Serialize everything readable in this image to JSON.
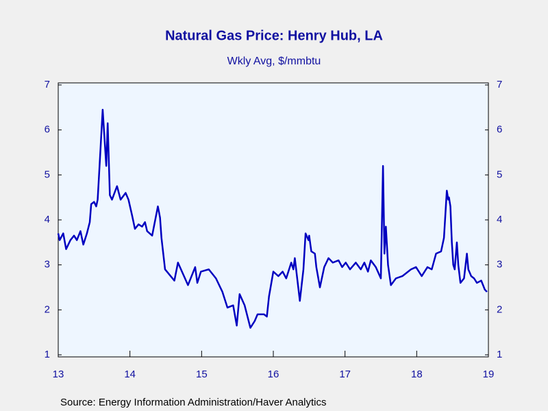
{
  "chart_data": {
    "type": "line",
    "title": "Natural Gas Price: Henry Hub, LA",
    "subtitle": "Wkly Avg, $/mmbtu",
    "source": "Source:  Energy Information Administration/Haver Analytics",
    "x": [
      2013.0,
      2013.02,
      2013.07,
      2013.11,
      2013.17,
      2013.22,
      2013.26,
      2013.31,
      2013.35,
      2013.4,
      2013.44,
      2013.46,
      2013.5,
      2013.53,
      2013.55,
      2013.58,
      2013.62,
      2013.67,
      2013.69,
      2013.72,
      2013.75,
      2013.82,
      2013.87,
      2013.94,
      2013.98,
      2014.03,
      2014.07,
      2014.12,
      2014.17,
      2014.21,
      2014.24,
      2014.31,
      2014.39,
      2014.42,
      2014.44,
      2014.49,
      2014.62,
      2014.67,
      2014.81,
      2014.91,
      2014.94,
      2014.99,
      2015.1,
      2015.2,
      2015.29,
      2015.36,
      2015.44,
      2015.49,
      2015.53,
      2015.6,
      2015.68,
      2015.74,
      2015.78,
      2015.87,
      2015.91,
      2015.94,
      2016.0,
      2016.07,
      2016.13,
      2016.18,
      2016.25,
      2016.28,
      2016.3,
      2016.37,
      2016.42,
      2016.45,
      2016.49,
      2016.5,
      2016.53,
      2016.58,
      2016.6,
      2016.65,
      2016.71,
      2016.77,
      2016.83,
      2016.91,
      2016.96,
      2017.01,
      2017.07,
      2017.15,
      2017.22,
      2017.27,
      2017.32,
      2017.36,
      2017.43,
      2017.5,
      2017.53,
      2017.55,
      2017.57,
      2017.6,
      2017.64,
      2017.71,
      2017.8,
      2017.92,
      2017.99,
      2018.07,
      2018.15,
      2018.21,
      2018.27,
      2018.34,
      2018.38,
      2018.42,
      2018.44,
      2018.45,
      2018.47,
      2018.49,
      2018.51,
      2018.53,
      2018.56,
      2018.58,
      2018.61,
      2018.66,
      2018.7,
      2018.72,
      2018.76,
      2018.8,
      2018.84,
      2018.9,
      2018.95,
      2018.98
    ],
    "series": [
      {
        "name": "Henry Hub",
        "color": "#0000c0",
        "values": [
          3.7,
          3.55,
          3.7,
          3.35,
          3.55,
          3.65,
          3.55,
          3.75,
          3.45,
          3.7,
          3.95,
          4.35,
          4.4,
          4.3,
          4.45,
          5.3,
          6.45,
          5.2,
          6.15,
          4.55,
          4.45,
          4.75,
          4.45,
          4.6,
          4.45,
          4.1,
          3.8,
          3.9,
          3.85,
          3.95,
          3.75,
          3.65,
          4.3,
          4.05,
          3.6,
          2.9,
          2.65,
          3.05,
          2.55,
          2.95,
          2.6,
          2.85,
          2.9,
          2.7,
          2.4,
          2.05,
          2.1,
          1.65,
          2.35,
          2.1,
          1.6,
          1.75,
          1.9,
          1.9,
          1.85,
          2.3,
          2.85,
          2.75,
          2.85,
          2.7,
          3.05,
          2.9,
          3.15,
          2.2,
          2.9,
          3.7,
          3.55,
          3.65,
          3.3,
          3.25,
          2.95,
          2.5,
          2.95,
          3.15,
          3.05,
          3.1,
          2.95,
          3.05,
          2.9,
          3.05,
          2.9,
          3.05,
          2.85,
          3.1,
          2.95,
          2.7,
          5.2,
          3.25,
          3.85,
          3.0,
          2.55,
          2.7,
          2.75,
          2.9,
          2.95,
          2.75,
          2.95,
          2.9,
          3.25,
          3.3,
          3.6,
          4.65,
          4.45,
          4.5,
          4.3,
          3.5,
          3.0,
          2.9,
          3.5,
          3.0,
          2.6,
          2.7,
          3.25,
          2.9,
          2.75,
          2.7,
          2.6,
          2.65,
          2.45,
          2.4
        ]
      }
    ],
    "xlim": [
      2013,
      2019
    ],
    "xticks": [
      {
        "value": 2013,
        "label": "13"
      },
      {
        "value": 2014,
        "label": "14"
      },
      {
        "value": 2015,
        "label": "15"
      },
      {
        "value": 2016,
        "label": "16"
      },
      {
        "value": 2017,
        "label": "17"
      },
      {
        "value": 2018,
        "label": "18"
      },
      {
        "value": 2019,
        "label": "19"
      }
    ],
    "ylim": [
      1,
      7
    ],
    "yticks": [
      1,
      2,
      3,
      4,
      5,
      6,
      7
    ],
    "grid": false
  }
}
